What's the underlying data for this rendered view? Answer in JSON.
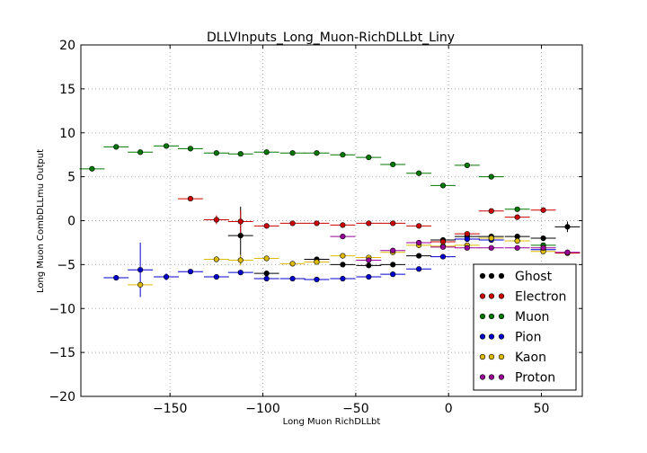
{
  "chart_data": {
    "type": "scatter",
    "title": "DLLVInputs_Long_Muon-RichDLLbt_Liny",
    "xlabel": "Long Muon RichDLLbt",
    "ylabel": "Long Muon CombDLLmu Output",
    "xlim": [
      -198,
      72
    ],
    "ylim": [
      -20,
      20
    ],
    "xticks": [
      -150,
      -100,
      -50,
      0,
      50
    ],
    "xtick_labels": [
      "−150",
      "−100",
      "−50",
      "0",
      "50"
    ],
    "yticks": [
      20,
      15,
      10,
      5,
      0,
      -5,
      -10,
      -15,
      -20
    ],
    "ytick_labels": [
      "20",
      "15",
      "10",
      "5",
      "0",
      "−5",
      "−10",
      "−15",
      "−20"
    ],
    "grid": true,
    "legend_position": "lower-right",
    "series": [
      {
        "name": "Ghost",
        "color": "#000000",
        "points": [
          {
            "x": -112,
            "y": -1.7,
            "yerr": 3.3
          },
          {
            "x": -98,
            "y": -6.0,
            "yerr": 0.3
          },
          {
            "x": -71,
            "y": -4.4,
            "yerr": 0.3
          },
          {
            "x": -57,
            "y": -5.0,
            "yerr": 0.2
          },
          {
            "x": -43,
            "y": -5.1,
            "yerr": 0.2
          },
          {
            "x": -30,
            "y": -5.0,
            "yerr": 0.2
          },
          {
            "x": -16,
            "y": -4.0,
            "yerr": 0.2
          },
          {
            "x": -3,
            "y": -2.2,
            "yerr": 0.2
          },
          {
            "x": 10,
            "y": -1.8,
            "yerr": 0.2
          },
          {
            "x": 23,
            "y": -1.8,
            "yerr": 0.2
          },
          {
            "x": 37,
            "y": -1.8,
            "yerr": 0.2
          },
          {
            "x": 51,
            "y": -2.0,
            "yerr": 0.2
          },
          {
            "x": 64,
            "y": -0.7,
            "yerr": 0.6
          }
        ]
      },
      {
        "name": "Electron",
        "color": "#cc0000",
        "points": [
          {
            "x": -139,
            "y": 2.5,
            "yerr": 0.2
          },
          {
            "x": -125,
            "y": 0.1,
            "yerr": 0.5
          },
          {
            "x": -112,
            "y": -0.1,
            "yerr": 1.3
          },
          {
            "x": -98,
            "y": -0.6,
            "yerr": 0.2
          },
          {
            "x": -84,
            "y": -0.3,
            "yerr": 0.2
          },
          {
            "x": -71,
            "y": -0.3,
            "yerr": 0.2
          },
          {
            "x": -57,
            "y": -0.5,
            "yerr": 0.2
          },
          {
            "x": -43,
            "y": -0.3,
            "yerr": 0.2
          },
          {
            "x": -30,
            "y": -0.3,
            "yerr": 0.2
          },
          {
            "x": -16,
            "y": -0.6,
            "yerr": 0.2
          },
          {
            "x": -3,
            "y": -2.4,
            "yerr": 0.2
          },
          {
            "x": 10,
            "y": -1.5,
            "yerr": 0.2
          },
          {
            "x": 23,
            "y": 1.1,
            "yerr": 0.2
          },
          {
            "x": 37,
            "y": 0.4,
            "yerr": 0.2
          },
          {
            "x": 51,
            "y": 1.2,
            "yerr": 0.2
          },
          {
            "x": 64,
            "y": -3.7,
            "yerr": 0.2
          }
        ]
      },
      {
        "name": "Muon",
        "color": "#007700",
        "points": [
          {
            "x": -192,
            "y": 5.9,
            "yerr": 0.2
          },
          {
            "x": -179,
            "y": 8.4,
            "yerr": 0.2
          },
          {
            "x": -166,
            "y": 7.8,
            "yerr": 0.2
          },
          {
            "x": -152,
            "y": 8.5,
            "yerr": 0.2
          },
          {
            "x": -139,
            "y": 8.2,
            "yerr": 0.2
          },
          {
            "x": -125,
            "y": 7.7,
            "yerr": 0.2
          },
          {
            "x": -112,
            "y": 7.6,
            "yerr": 0.2
          },
          {
            "x": -98,
            "y": 7.8,
            "yerr": 0.2
          },
          {
            "x": -84,
            "y": 7.7,
            "yerr": 0.2
          },
          {
            "x": -71,
            "y": 7.7,
            "yerr": 0.2
          },
          {
            "x": -57,
            "y": 7.5,
            "yerr": 0.2
          },
          {
            "x": -43,
            "y": 7.2,
            "yerr": 0.2
          },
          {
            "x": -30,
            "y": 6.4,
            "yerr": 0.2
          },
          {
            "x": -16,
            "y": 5.4,
            "yerr": 0.2
          },
          {
            "x": -3,
            "y": 4.0,
            "yerr": 0.2
          },
          {
            "x": 10,
            "y": 6.3,
            "yerr": 0.2
          },
          {
            "x": 23,
            "y": 5.0,
            "yerr": 0.2
          },
          {
            "x": 37,
            "y": 1.3,
            "yerr": 0.2
          },
          {
            "x": 51,
            "y": -2.8,
            "yerr": 0.2
          }
        ]
      },
      {
        "name": "Pion",
        "color": "#0000cc",
        "points": [
          {
            "x": -179,
            "y": -6.5,
            "yerr": 0.2
          },
          {
            "x": -166,
            "y": -5.6,
            "yerr": 3.1
          },
          {
            "x": -152,
            "y": -6.4,
            "yerr": 0.4
          },
          {
            "x": -139,
            "y": -5.8,
            "yerr": 0.2
          },
          {
            "x": -125,
            "y": -6.4,
            "yerr": 0.2
          },
          {
            "x": -112,
            "y": -5.9,
            "yerr": 0.2
          },
          {
            "x": -98,
            "y": -6.6,
            "yerr": 0.2
          },
          {
            "x": -84,
            "y": -6.6,
            "yerr": 0.2
          },
          {
            "x": -71,
            "y": -6.7,
            "yerr": 0.2
          },
          {
            "x": -57,
            "y": -6.6,
            "yerr": 0.2
          },
          {
            "x": -43,
            "y": -6.4,
            "yerr": 0.2
          },
          {
            "x": -30,
            "y": -6.1,
            "yerr": 0.2
          },
          {
            "x": -16,
            "y": -5.5,
            "yerr": 0.2
          },
          {
            "x": -3,
            "y": -4.1,
            "yerr": 0.2
          },
          {
            "x": 10,
            "y": -2.1,
            "yerr": 0.2
          },
          {
            "x": 23,
            "y": -2.2,
            "yerr": 0.2
          },
          {
            "x": 37,
            "y": -2.3,
            "yerr": 0.2
          },
          {
            "x": 51,
            "y": -3.3,
            "yerr": 0.2
          }
        ]
      },
      {
        "name": "Kaon",
        "color": "#ddbb00",
        "points": [
          {
            "x": -166,
            "y": -7.3,
            "yerr": 0.3
          },
          {
            "x": -125,
            "y": -4.4,
            "yerr": 0.2
          },
          {
            "x": -112,
            "y": -4.5,
            "yerr": 0.6
          },
          {
            "x": -98,
            "y": -4.3,
            "yerr": 0.3
          },
          {
            "x": -84,
            "y": -4.9,
            "yerr": 0.2
          },
          {
            "x": -71,
            "y": -4.7,
            "yerr": 0.2
          },
          {
            "x": -57,
            "y": -4.0,
            "yerr": 0.2
          },
          {
            "x": -43,
            "y": -4.2,
            "yerr": 0.2
          },
          {
            "x": -30,
            "y": -3.6,
            "yerr": 0.2
          },
          {
            "x": -16,
            "y": -2.8,
            "yerr": 0.2
          },
          {
            "x": -3,
            "y": -2.9,
            "yerr": 0.2
          },
          {
            "x": 10,
            "y": -2.8,
            "yerr": 0.2
          },
          {
            "x": 23,
            "y": -2.0,
            "yerr": 0.2
          },
          {
            "x": 37,
            "y": -2.3,
            "yerr": 0.2
          },
          {
            "x": 51,
            "y": -3.5,
            "yerr": 0.2
          }
        ]
      },
      {
        "name": "Proton",
        "color": "#990099",
        "points": [
          {
            "x": -57,
            "y": -1.8,
            "yerr": 0.2
          },
          {
            "x": -43,
            "y": -4.5,
            "yerr": 0.2
          },
          {
            "x": -30,
            "y": -3.4,
            "yerr": 0.2
          },
          {
            "x": -16,
            "y": -2.5,
            "yerr": 0.2
          },
          {
            "x": -3,
            "y": -3.0,
            "yerr": 0.2
          },
          {
            "x": 10,
            "y": -3.1,
            "yerr": 0.2
          },
          {
            "x": 23,
            "y": -3.1,
            "yerr": 0.2
          },
          {
            "x": 37,
            "y": -3.1,
            "yerr": 0.2
          },
          {
            "x": 51,
            "y": -3.1,
            "yerr": 0.2
          },
          {
            "x": 64,
            "y": -3.6,
            "yerr": 0.2
          }
        ]
      }
    ]
  }
}
